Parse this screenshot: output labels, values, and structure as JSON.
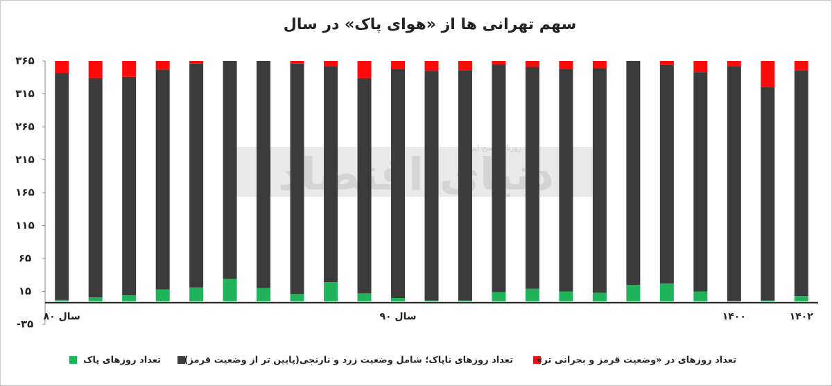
{
  "chart_data": {
    "type": "stacked_bar",
    "title": "سهم تهرانی ها از «هوای پاک» در سال",
    "watermark": "دنیای اقتصاد",
    "watermark_sub": "روزنامه صبح ایران",
    "categories": [
      "سال ۸۰",
      null,
      null,
      null,
      null,
      null,
      null,
      null,
      null,
      null,
      "سال ۹۰",
      null,
      null,
      null,
      null,
      null,
      null,
      null,
      null,
      null,
      "۱۴۰۰",
      null,
      "۱۴۰۲"
    ],
    "series": [
      {
        "name": "تعداد روزهای پاک",
        "color": "#1fb35a",
        "values": [
          2,
          6,
          9,
          18,
          21,
          34,
          20,
          11,
          29,
          12,
          5,
          1,
          1,
          14,
          19,
          15,
          13,
          25,
          27,
          15,
          0,
          1,
          8
        ]
      },
      {
        "name": "تعداد روزهای ناپاک؛ شامل وضعیت زرد و نارنجی(پایین تر از وضعیت قرمز)",
        "color": "#3b3b3b",
        "values": [
          345,
          333,
          332,
          334,
          340,
          331,
          345,
          350,
          328,
          327,
          348,
          349,
          350,
          346,
          337,
          338,
          341,
          340,
          332,
          333,
          357,
          324,
          343
        ]
      },
      {
        "name": "تعداد روزهای در «وضعیت قرمز و بحرانی تر»",
        "color": "#ff0a0a",
        "values": [
          18,
          26,
          24,
          13,
          4,
          0,
          0,
          4,
          8,
          26,
          12,
          15,
          14,
          5,
          9,
          12,
          11,
          0,
          6,
          17,
          8,
          40,
          14
        ]
      }
    ],
    "ylim": [
      -35,
      365
    ],
    "yticks": [
      {
        "value": 365,
        "label": "۳۶۵"
      },
      {
        "value": 315,
        "label": "۳۱۵"
      },
      {
        "value": 265,
        "label": "۲۶۵"
      },
      {
        "value": 215,
        "label": "۲۱۵"
      },
      {
        "value": 165,
        "label": "۱۶۵"
      },
      {
        "value": 115,
        "label": "۱۱۵"
      },
      {
        "value": 65,
        "label": "۶۵"
      },
      {
        "value": 15,
        "label": "۱۵"
      },
      {
        "value": -35,
        "label": "-۳۵"
      }
    ]
  }
}
